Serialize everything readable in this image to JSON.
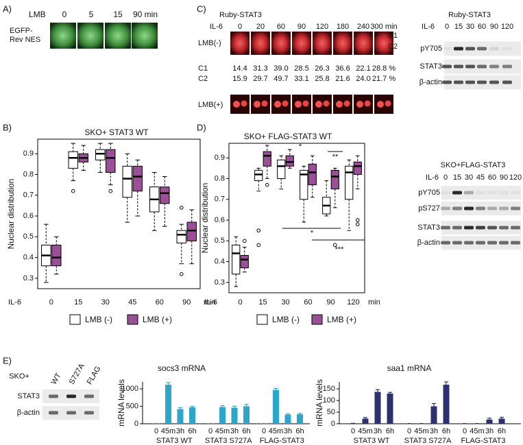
{
  "panel_labels": [
    "A)",
    "B)",
    "C)",
    "D)",
    "E)"
  ],
  "panel_a": {
    "treatment": "LMB",
    "times": [
      "0",
      "5",
      "15",
      "90 min"
    ],
    "row_label": [
      "EGFP-",
      "Rev NES"
    ]
  },
  "panel_c": {
    "construct": "Ruby-STAT3",
    "stimulus": "IL-6",
    "times": [
      "0",
      "20",
      "60",
      "90",
      "120",
      "180",
      "240",
      "300 min"
    ],
    "rows": [
      "LMB(-)",
      "LMB(+)"
    ],
    "regions": [
      "C1",
      "C2"
    ],
    "quantification": [
      {
        "name": "C1",
        "values": [
          "14.4",
          "31.3",
          "39.0",
          "28.5",
          "26.3",
          "36.6",
          "22.1",
          "28.8 %"
        ]
      },
      {
        "name": "C2",
        "values": [
          "15.9",
          "29.7",
          "49.7",
          "33.1",
          "25.8",
          "21.6",
          "24.0",
          "21.7 %"
        ]
      }
    ]
  },
  "blots": [
    {
      "title": "Ruby-STAT3",
      "stimulus": "IL-6",
      "lanes": [
        "0",
        "15",
        "30",
        "60",
        "90",
        "120"
      ],
      "rows": [
        "pY705",
        "STAT3",
        "β-actin"
      ]
    },
    {
      "title": "SKO+FLAG-STAT3",
      "stimulus": "IL-6",
      "lanes": [
        "0",
        "15",
        "30",
        "45",
        "60",
        "90",
        "120"
      ],
      "rows": [
        "pY705",
        "pS727",
        "STAT3",
        "β-actin"
      ]
    },
    {
      "title": "SKO+",
      "lanes": [
        "WT",
        "S727A",
        "FLAG"
      ],
      "rows": [
        "STAT3",
        "β-actin"
      ]
    }
  ],
  "chart_data": [
    {
      "type": "box",
      "title": "SKO+ STAT3 WT",
      "y_label": "Nuclear distribution",
      "x_label": "IL-6",
      "x_unit": "min",
      "categories": [
        "0",
        "15",
        "30",
        "45",
        "60",
        "90"
      ],
      "ylim": [
        0.25,
        0.97
      ],
      "yticks": [
        0.3,
        0.4,
        0.5,
        0.6,
        0.7,
        0.8,
        0.9
      ],
      "series": [
        {
          "name": "LMB (-)",
          "color": "#ffffff",
          "boxes": [
            {
              "min": 0.28,
              "q1": 0.36,
              "median": 0.41,
              "q3": 0.46,
              "max": 0.56,
              "outliers": []
            },
            {
              "min": 0.77,
              "q1": 0.83,
              "median": 0.88,
              "q3": 0.91,
              "max": 0.95,
              "outliers": [
                0.72
              ]
            },
            {
              "min": 0.81,
              "q1": 0.87,
              "median": 0.9,
              "q3": 0.92,
              "max": 0.95,
              "outliers": []
            },
            {
              "min": 0.57,
              "q1": 0.69,
              "median": 0.78,
              "q3": 0.84,
              "max": 0.9,
              "outliers": []
            },
            {
              "min": 0.53,
              "q1": 0.62,
              "median": 0.68,
              "q3": 0.74,
              "max": 0.81,
              "outliers": []
            },
            {
              "min": 0.37,
              "q1": 0.47,
              "median": 0.51,
              "q3": 0.53,
              "max": 0.56,
              "outliers": [
                0.32,
                0.64
              ]
            }
          ]
        },
        {
          "name": "LMB (+)",
          "color": "#9b4f96",
          "boxes": [
            {
              "min": 0.32,
              "q1": 0.36,
              "median": 0.4,
              "q3": 0.46,
              "max": 0.5,
              "outliers": []
            },
            {
              "min": 0.82,
              "q1": 0.86,
              "median": 0.88,
              "q3": 0.9,
              "max": 0.94,
              "outliers": []
            },
            {
              "min": 0.75,
              "q1": 0.81,
              "median": 0.88,
              "q3": 0.92,
              "max": 0.95,
              "outliers": [
                0.72
              ]
            },
            {
              "min": 0.6,
              "q1": 0.72,
              "median": 0.79,
              "q3": 0.84,
              "max": 0.87,
              "outliers": []
            },
            {
              "min": 0.55,
              "q1": 0.66,
              "median": 0.71,
              "q3": 0.74,
              "max": 0.79,
              "outliers": []
            },
            {
              "min": 0.37,
              "q1": 0.48,
              "median": 0.53,
              "q3": 0.57,
              "max": 0.63,
              "outliers": []
            }
          ]
        }
      ]
    },
    {
      "type": "box",
      "title": "SKO+ FLAG-STAT3 WT",
      "y_label": "Nuclear distribution",
      "x_label": "IL-6",
      "x_unit": "min",
      "categories": [
        "0",
        "15",
        "30",
        "60",
        "90",
        "120"
      ],
      "ylim": [
        0.25,
        0.97
      ],
      "yticks": [
        0.3,
        0.4,
        0.5,
        0.6,
        0.7,
        0.8,
        0.9
      ],
      "annotations": [
        "*",
        "**",
        "*",
        "***"
      ],
      "series": [
        {
          "name": "LMB (-)",
          "color": "#ffffff",
          "boxes": [
            {
              "min": 0.28,
              "q1": 0.34,
              "median": 0.44,
              "q3": 0.48,
              "max": 0.52,
              "outliers": []
            },
            {
              "min": 0.74,
              "q1": 0.79,
              "median": 0.82,
              "q3": 0.84,
              "max": 0.85,
              "outliers": [
                0.55,
                0.48
              ]
            },
            {
              "min": 0.75,
              "q1": 0.8,
              "median": 0.86,
              "q3": 0.89,
              "max": 0.91,
              "outliers": []
            },
            {
              "min": 0.59,
              "q1": 0.7,
              "median": 0.82,
              "q3": 0.84,
              "max": 0.86,
              "outliers": []
            },
            {
              "min": 0.62,
              "q1": 0.63,
              "median": 0.67,
              "q3": 0.71,
              "max": 0.79,
              "outliers": []
            },
            {
              "min": 0.55,
              "q1": 0.7,
              "median": 0.83,
              "q3": 0.86,
              "max": 0.89,
              "outliers": []
            }
          ]
        },
        {
          "name": "LMB (+)",
          "color": "#9b4f96",
          "boxes": [
            {
              "min": 0.35,
              "q1": 0.37,
              "median": 0.41,
              "q3": 0.43,
              "max": 0.47,
              "outliers": [
                0.5
              ]
            },
            {
              "min": 0.8,
              "q1": 0.86,
              "median": 0.91,
              "q3": 0.93,
              "max": 0.96,
              "outliers": [
                0.77
              ]
            },
            {
              "min": 0.85,
              "q1": 0.86,
              "median": 0.88,
              "q3": 0.91,
              "max": 0.94,
              "outliers": []
            },
            {
              "min": 0.71,
              "q1": 0.77,
              "median": 0.83,
              "q3": 0.87,
              "max": 0.91,
              "outliers": []
            },
            {
              "min": 0.66,
              "q1": 0.75,
              "median": 0.81,
              "q3": 0.84,
              "max": 0.85,
              "outliers": [
                0.48
              ]
            },
            {
              "min": 0.75,
              "q1": 0.82,
              "median": 0.86,
              "q3": 0.88,
              "max": 0.91,
              "outliers": [
                0.6,
                0.58
              ]
            }
          ]
        }
      ]
    },
    {
      "type": "bar",
      "title": "socs3 mRNA",
      "y_label": "mRNA levels",
      "color": "#2ea6c9",
      "categories": [
        "0",
        "45m",
        "3h",
        "6h",
        "0",
        "45m",
        "3h",
        "6h",
        "0",
        "45m",
        "3h",
        "6h"
      ],
      "groups": [
        "STAT3 WT",
        "STAT3 S727A",
        "FLAG-STAT3"
      ],
      "values": [
        10,
        1120,
        420,
        470,
        10,
        480,
        460,
        500,
        10,
        970,
        260,
        270
      ],
      "errors": [
        0,
        60,
        40,
        30,
        0,
        40,
        45,
        55,
        0,
        45,
        25,
        25
      ],
      "ylim": [
        0,
        1200
      ],
      "yticks": [
        0,
        500,
        1000
      ]
    },
    {
      "type": "bar",
      "title": "saa1 mRNA",
      "y_label": "mRNA levels",
      "color": "#2e3170",
      "categories": [
        "0",
        "45m",
        "3h",
        "6h",
        "0",
        "45m",
        "3h",
        "6h",
        "0",
        "45m",
        "3h",
        "6h"
      ],
      "groups": [
        "STAT3 WT",
        "STAT3 S727A",
        "FLAG-STAT3"
      ],
      "values": [
        2,
        22,
        137,
        130,
        1,
        1,
        75,
        168,
        1,
        1,
        18,
        22
      ],
      "errors": [
        0,
        5,
        10,
        5,
        0,
        0,
        12,
        12,
        0,
        0,
        6,
        6
      ],
      "ylim": [
        0,
        180
      ],
      "yticks": [
        0,
        50,
        100,
        150
      ]
    }
  ]
}
